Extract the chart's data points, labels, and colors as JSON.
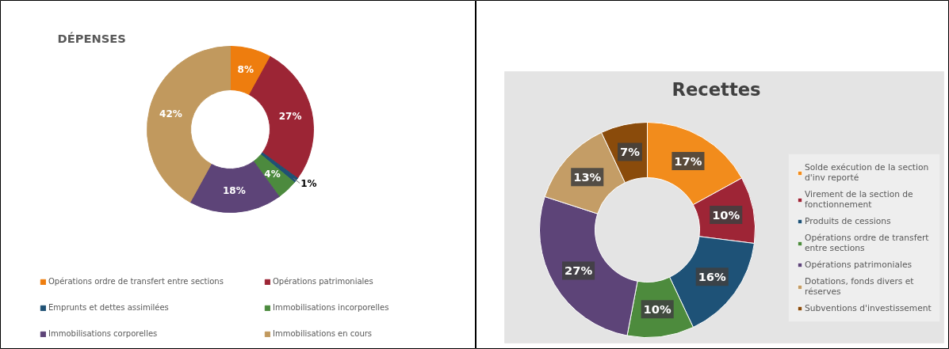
{
  "chart_data": [
    {
      "type": "donut",
      "title": "DÉPENSES",
      "legend": "bottom",
      "categories": [
        "Opérations ordre de transfert entre sections",
        "Opérations patrimoniales",
        "Emprunts et dettes assimilées",
        "Immobilisations incorporelles",
        "Immobilisations corporelles",
        "Immobilisations en cours"
      ],
      "values": [
        8,
        27,
        1,
        4,
        18,
        42
      ],
      "value_labels": [
        "8%",
        "27%",
        "1%",
        "4%",
        "18%",
        "42%"
      ],
      "colors": [
        "#ee7d0e",
        "#9c2535",
        "#1f5174",
        "#4c8a3e",
        "#5d4478",
        "#c1995e"
      ]
    },
    {
      "type": "donut",
      "title": "Recettes",
      "legend": "right",
      "categories": [
        "Solde exécution de la section d'inv reporté",
        "Virement de la section de fonctionnement",
        "Produits de cessions",
        "Opérations ordre de transfert entre sections",
        "Opérations patrimoniales",
        "Dotations, fonds divers et réserves",
        "Subventions d'investissement"
      ],
      "values": [
        17,
        10,
        16,
        10,
        27,
        13,
        7
      ],
      "value_labels": [
        "17%",
        "10%",
        "16%",
        "10%",
        "27%",
        "13%",
        "7%"
      ],
      "colors": [
        "#f28c1c",
        "#9e2536",
        "#1e5277",
        "#4d8b3d",
        "#5d4478",
        "#c49d66",
        "#8a4b0b"
      ]
    }
  ]
}
